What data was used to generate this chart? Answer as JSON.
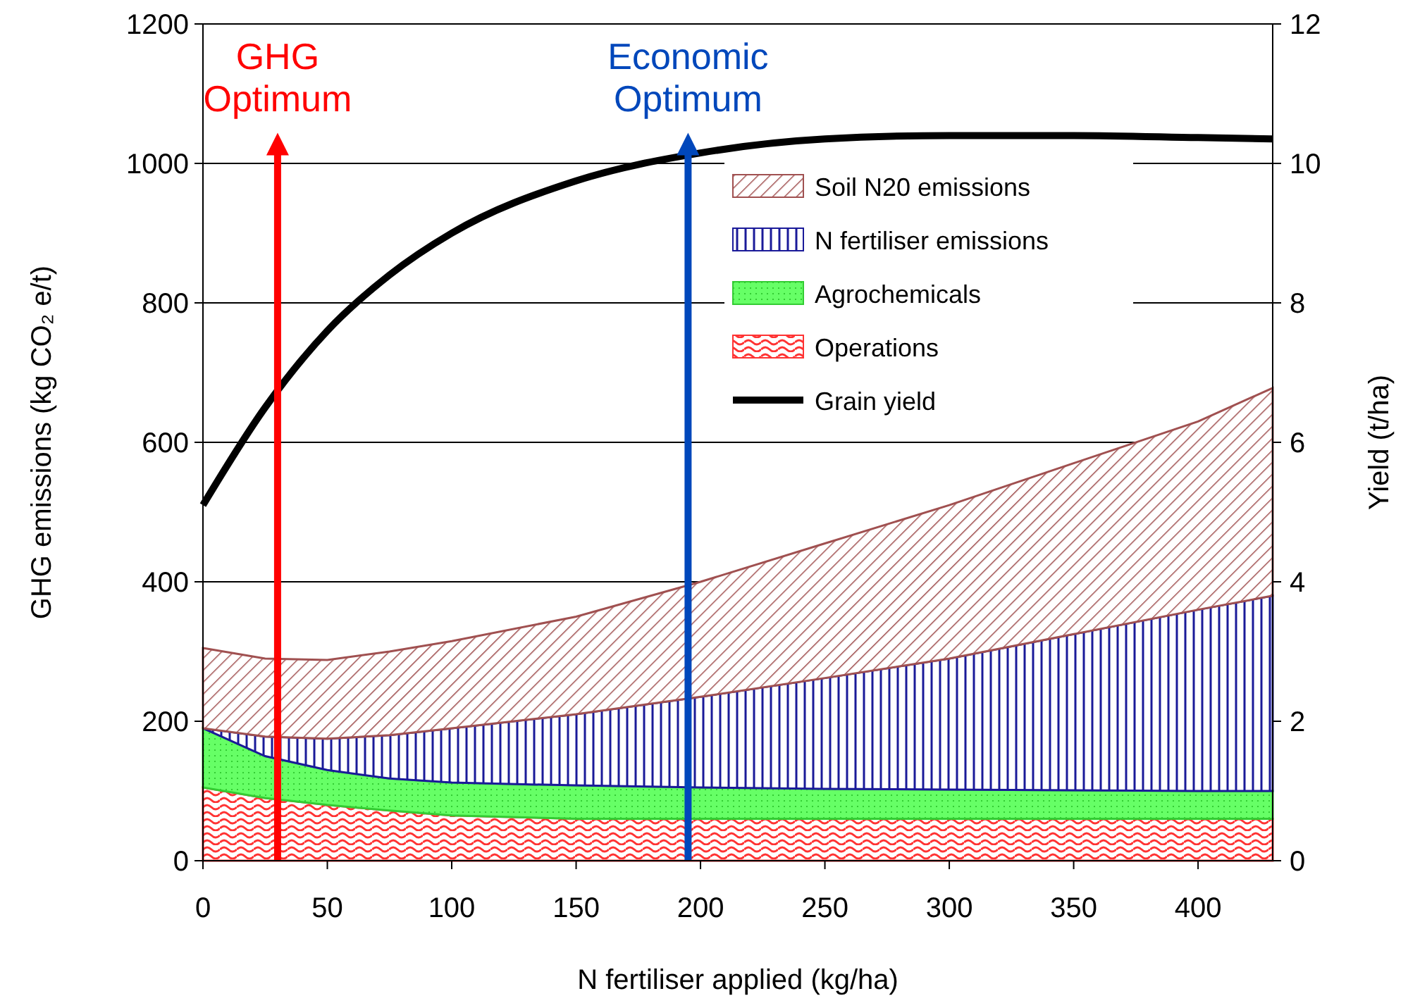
{
  "chart_data": {
    "type": "area",
    "stacked": true,
    "xlabel": "N fertiliser applied (kg/ha)",
    "ylabel": "GHG emissions (kg CO₂ e/t)",
    "y2label": "Yield (t/ha)",
    "x": [
      0,
      25,
      50,
      75,
      100,
      150,
      200,
      250,
      300,
      350,
      400,
      430
    ],
    "xlim": [
      0,
      430
    ],
    "xticks": [
      0,
      50,
      100,
      150,
      200,
      250,
      300,
      350,
      400
    ],
    "ylim": [
      0,
      1200
    ],
    "yticks": [
      0,
      200,
      400,
      600,
      800,
      1000,
      1200
    ],
    "y2lim": [
      0,
      12
    ],
    "y2ticks": [
      0,
      2,
      4,
      6,
      8,
      10,
      12
    ],
    "grid": "y",
    "legend": "top right",
    "series": [
      {
        "name": "Operations",
        "color": "#ff3333",
        "values": [
          105,
          90,
          80,
          72,
          65,
          60,
          60,
          60,
          60,
          60,
          60,
          60
        ]
      },
      {
        "name": "Agrochemicals",
        "color": "#33cc33",
        "values": [
          85,
          60,
          50,
          46,
          47,
          48,
          45,
          43,
          42,
          41,
          40,
          40
        ]
      },
      {
        "name": "N fertiliser emissions",
        "color": "#1a1a99",
        "values": [
          0,
          28,
          45,
          62,
          78,
          102,
          130,
          159,
          188,
          224,
          260,
          280
        ]
      },
      {
        "name": "Soil N20 emissions",
        "color": "#a05050",
        "values": [
          115,
          112,
          113,
          120,
          125,
          140,
          165,
          193,
          220,
          245,
          270,
          298
        ]
      },
      {
        "name": "Grain yield",
        "type": "line",
        "axis": "y2",
        "color": "#000000",
        "values": [
          5.1,
          6.5,
          7.6,
          8.4,
          9.0,
          9.75,
          10.15,
          10.35,
          10.4,
          10.4,
          10.37,
          10.35
        ]
      }
    ],
    "ref_lines": [
      {
        "axis": "x",
        "value": 30,
        "label": "GHG Optimum",
        "color": "#ff0000"
      },
      {
        "axis": "x",
        "value": 195,
        "label": "Economic Optimum",
        "color": "#0047bb"
      }
    ]
  }
}
